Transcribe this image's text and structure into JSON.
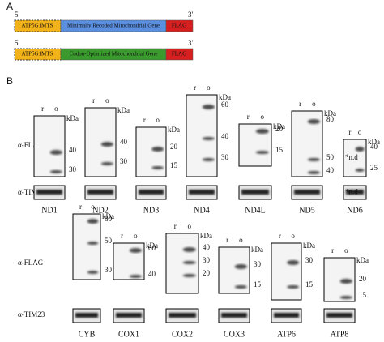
{
  "panel_a": {
    "label": "A",
    "constructs": [
      {
        "five_prime": "5'",
        "three_prime": "3'",
        "mts": "ATP5G1MTS",
        "gene": "Minimally Recoded Mitochondrial Gene",
        "tag": "FLAG"
      },
      {
        "five_prime": "5'",
        "three_prime": "3'",
        "mts": "ATP5G1MTS",
        "gene": "Codon-Optimized Mitochondrial Gene",
        "tag": "FLAG"
      }
    ]
  },
  "panel_b": {
    "label": "B",
    "rows": [
      {
        "flag_label": "α-FLAG",
        "tim_label": "α-TIM23",
        "panels": [
          {
            "name": "ND1",
            "lanes": [
              "r",
              "o"
            ],
            "unit": "kDa",
            "markers": [
              40,
              30
            ]
          },
          {
            "name": "ND2",
            "lanes": [
              "r",
              "o"
            ],
            "unit": "kDa",
            "markers": [
              40,
              30
            ]
          },
          {
            "name": "ND3",
            "lanes": [
              "r",
              "o"
            ],
            "unit": "kDa",
            "markers": [
              20,
              15
            ]
          },
          {
            "name": "ND4",
            "lanes": [
              "r",
              "o"
            ],
            "unit": "kDa",
            "markers": [
              60,
              40,
              30
            ]
          },
          {
            "name": "ND4L",
            "lanes": [
              "r",
              "o"
            ],
            "unit": "kDa",
            "markers": [
              20,
              15
            ]
          },
          {
            "name": "ND5",
            "lanes": [
              "r",
              "o"
            ],
            "unit": "kDa",
            "markers": [
              80,
              50,
              40
            ]
          },
          {
            "name": "ND6",
            "lanes": [
              "r",
              "o"
            ],
            "unit": "kDa",
            "markers": [
              40,
              25
            ],
            "notes": [
              "*n.d",
              "*n.d"
            ]
          }
        ]
      },
      {
        "flag_label": "α-FLAG",
        "tim_label": "α-TIM23",
        "panels": [
          {
            "name": "CYB",
            "lanes": [
              "r",
              "o"
            ],
            "unit": "kDa",
            "markers": [
              80,
              50,
              30
            ]
          },
          {
            "name": "COX1",
            "lanes": [
              "r",
              "o"
            ],
            "unit": "kDa",
            "markers": [
              60,
              40
            ]
          },
          {
            "name": "COX2",
            "lanes": [
              "r",
              "o"
            ],
            "unit": "kDa",
            "markers": [
              40,
              30,
              20
            ]
          },
          {
            "name": "COX3",
            "lanes": [
              "r",
              "o"
            ],
            "unit": "kDa",
            "markers": [
              30,
              15
            ]
          },
          {
            "name": "ATP6",
            "lanes": [
              "r",
              "o"
            ],
            "unit": "kDa",
            "markers": [
              30,
              15
            ]
          },
          {
            "name": "ATP8",
            "lanes": [
              "r",
              "o"
            ],
            "unit": "kDa",
            "markers": [
              20,
              15
            ]
          }
        ]
      }
    ]
  }
}
